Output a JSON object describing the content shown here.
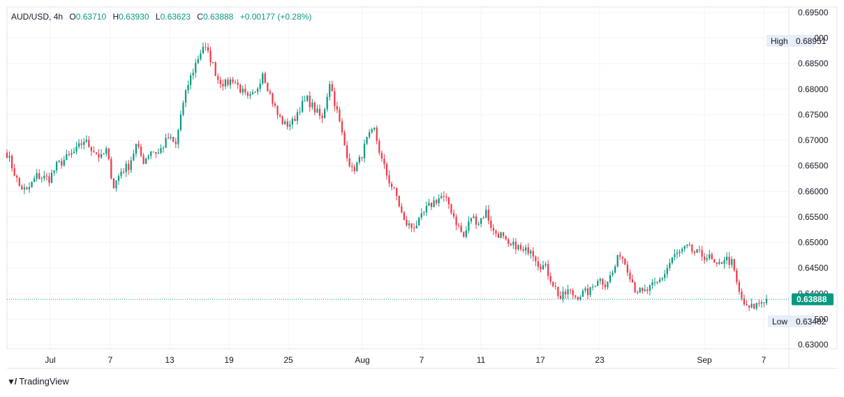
{
  "header": {
    "symbol": "AUD/USD",
    "interval": "4h",
    "open_label": "O",
    "open": "0.63710",
    "high_label": "H",
    "high": "0.63930",
    "low_label": "L",
    "low": "0.63623",
    "close_label": "C",
    "close": "0.63888",
    "change": "+0.00177 (+0.28%)"
  },
  "price_scale": {
    "ticks": [
      "0.69500",
      "0.69000",
      "0.68500",
      "0.68000",
      "0.67500",
      "0.67000",
      "0.66500",
      "0.66000",
      "0.65500",
      "0.65000",
      "0.64500",
      "0.64000",
      "0.63500",
      "0.63000"
    ],
    "high_label": "High",
    "high_value": "0.68951",
    "low_label": "Low",
    "low_value": "0.63482",
    "last_price": "0.63888"
  },
  "time_scale": {
    "ticks": [
      "Jul",
      "7",
      "13",
      "19",
      "25",
      "Aug",
      "7",
      "11",
      "17",
      "23",
      "Sep",
      "7"
    ]
  },
  "branding": {
    "name": "TradingView"
  },
  "colors": {
    "up": "#089981",
    "down": "#f23645",
    "last_price_bg": "#089981",
    "grid": "#f0f3fa"
  },
  "chart_data": {
    "type": "candlestick",
    "ylim": [
      0.63,
      0.695
    ],
    "keypoints": [
      [
        0,
        0.6675
      ],
      [
        5,
        0.661
      ],
      [
        8,
        0.66
      ],
      [
        12,
        0.663
      ],
      [
        17,
        0.6625
      ],
      [
        20,
        0.665
      ],
      [
        24,
        0.6665
      ],
      [
        28,
        0.668
      ],
      [
        31,
        0.67
      ],
      [
        35,
        0.668
      ],
      [
        38,
        0.6665
      ],
      [
        40,
        0.668
      ],
      [
        43,
        0.661
      ],
      [
        46,
        0.664
      ],
      [
        49,
        0.665
      ],
      [
        52,
        0.669
      ],
      [
        55,
        0.666
      ],
      [
        58,
        0.668
      ],
      [
        61,
        0.6675
      ],
      [
        65,
        0.6705
      ],
      [
        68,
        0.669
      ],
      [
        70,
        0.675
      ],
      [
        73,
        0.681
      ],
      [
        76,
        0.685
      ],
      [
        79,
        0.6885
      ],
      [
        82,
        0.686
      ],
      [
        85,
        0.682
      ],
      [
        88,
        0.681
      ],
      [
        91,
        0.682
      ],
      [
        94,
        0.68
      ],
      [
        97,
        0.678
      ],
      [
        100,
        0.679
      ],
      [
        103,
        0.6835
      ],
      [
        106,
        0.679
      ],
      [
        109,
        0.675
      ],
      [
        112,
        0.673
      ],
      [
        115,
        0.6735
      ],
      [
        118,
        0.6765
      ],
      [
        121,
        0.678
      ],
      [
        124,
        0.676
      ],
      [
        127,
        0.674
      ],
      [
        130,
        0.6815
      ],
      [
        133,
        0.6755
      ],
      [
        136,
        0.669
      ],
      [
        139,
        0.664
      ],
      [
        142,
        0.666
      ],
      [
        145,
        0.67
      ],
      [
        148,
        0.672
      ],
      [
        151,
        0.666
      ],
      [
        154,
        0.662
      ],
      [
        157,
        0.659
      ],
      [
        160,
        0.654
      ],
      [
        163,
        0.653
      ],
      [
        166,
        0.654
      ],
      [
        169,
        0.6565
      ],
      [
        172,
        0.658
      ],
      [
        175,
        0.659
      ],
      [
        178,
        0.6575
      ],
      [
        181,
        0.654
      ],
      [
        184,
        0.651
      ],
      [
        187,
        0.655
      ],
      [
        190,
        0.654
      ],
      [
        193,
        0.656
      ],
      [
        196,
        0.652
      ],
      [
        199,
        0.6515
      ],
      [
        202,
        0.649
      ],
      [
        205,
        0.6495
      ],
      [
        208,
        0.648
      ],
      [
        211,
        0.649
      ],
      [
        214,
        0.646
      ],
      [
        217,
        0.645
      ],
      [
        220,
        0.642
      ],
      [
        223,
        0.639
      ],
      [
        226,
        0.6405
      ],
      [
        229,
        0.6395
      ],
      [
        232,
        0.64
      ],
      [
        235,
        0.6405
      ],
      [
        238,
        0.643
      ],
      [
        241,
        0.642
      ],
      [
        244,
        0.644
      ],
      [
        247,
        0.648
      ],
      [
        250,
        0.645
      ],
      [
        253,
        0.641
      ],
      [
        256,
        0.64
      ],
      [
        259,
        0.641
      ],
      [
        262,
        0.642
      ],
      [
        265,
        0.644
      ],
      [
        268,
        0.647
      ],
      [
        271,
        0.648
      ],
      [
        274,
        0.649
      ],
      [
        277,
        0.648
      ],
      [
        280,
        0.6475
      ],
      [
        283,
        0.647
      ],
      [
        286,
        0.645
      ],
      [
        289,
        0.647
      ],
      [
        292,
        0.646
      ],
      [
        295,
        0.64
      ],
      [
        298,
        0.637
      ],
      [
        301,
        0.6375
      ],
      [
        304,
        0.6385
      ],
      [
        306,
        0.6389
      ]
    ]
  }
}
